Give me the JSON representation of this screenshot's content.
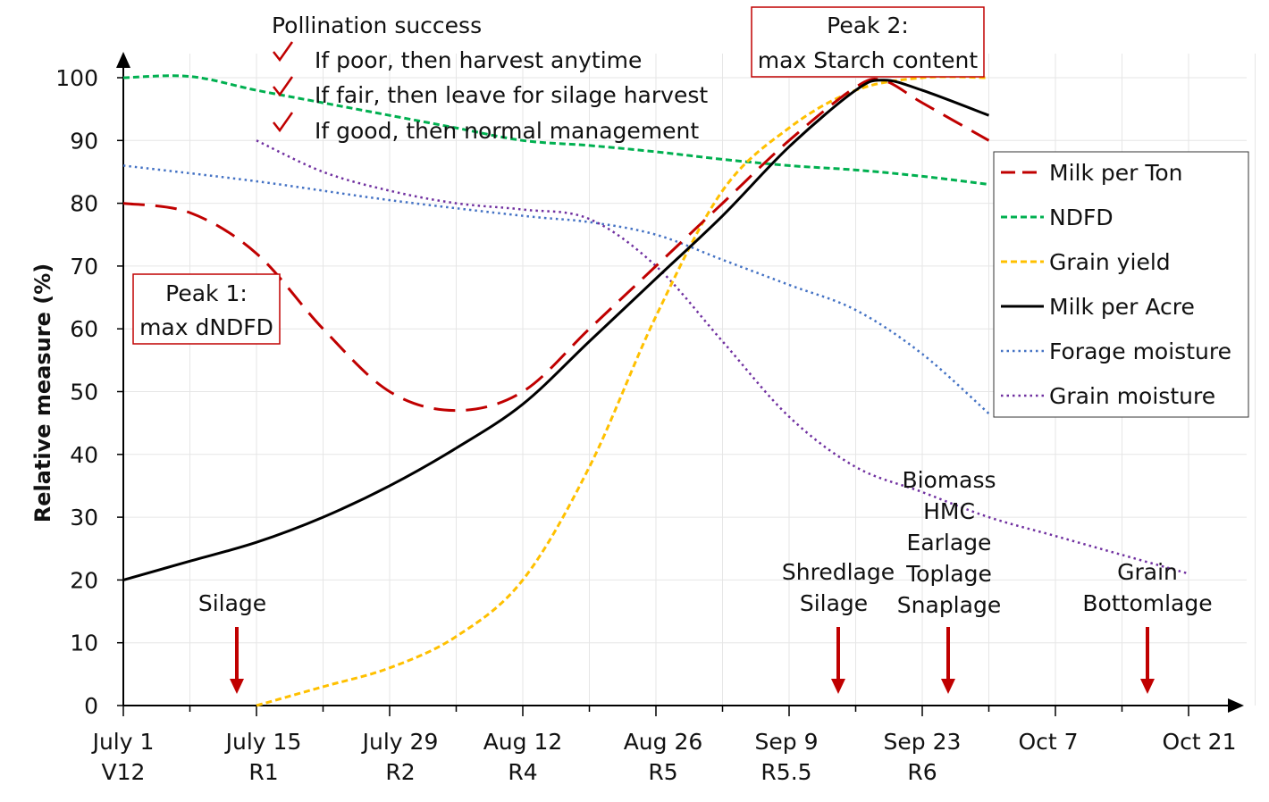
{
  "chart_data": {
    "type": "line",
    "title": "",
    "xlabel": "",
    "ylabel": "Relative measure  (%)",
    "ylim": [
      0,
      100
    ],
    "yticks": [
      0,
      10,
      20,
      30,
      40,
      50,
      60,
      70,
      80,
      90,
      100
    ],
    "xlim": [
      "Jul 1",
      "Oct 21"
    ],
    "xticks": [
      {
        "date": "Jul 1",
        "label": "July 1",
        "stage": "V12"
      },
      {
        "date": "Jul 15",
        "label": "July 15",
        "stage": "R1"
      },
      {
        "date": "Jul 29",
        "label": "July 29",
        "stage": "R2"
      },
      {
        "date": "Aug 12",
        "label": "Aug 12",
        "stage": "R4"
      },
      {
        "date": "Aug 26",
        "label": "Aug 26",
        "stage": "R5"
      },
      {
        "date": "Sep 9",
        "label": "Sep 9",
        "stage": "R5.5"
      },
      {
        "date": "Sep 23",
        "label": "Sep 23",
        "stage": "R6"
      },
      {
        "date": "Oct 7",
        "label": "Oct 7",
        "stage": ""
      },
      {
        "date": "Oct 21",
        "label": "Oct 21",
        "stage": ""
      }
    ],
    "grid": true,
    "legend_position": "right",
    "series": [
      {
        "name": "Milk per Ton",
        "color": "#C00000",
        "style": "long-dash",
        "x": [
          "Jul 1",
          "Jul 8",
          "Jul 15",
          "Jul 22",
          "Jul 29",
          "Aug 5",
          "Aug 12",
          "Aug 19",
          "Aug 26",
          "Sep 2",
          "Sep 9",
          "Sep 16",
          "Sep 19",
          "Sep 23",
          "Sep 30"
        ],
        "y": [
          80,
          78.5,
          72,
          60,
          50,
          47,
          50,
          60,
          70,
          80,
          90,
          98.5,
          99.5,
          96,
          90
        ]
      },
      {
        "name": "NDFD",
        "color": "#00B050",
        "style": "dash",
        "x": [
          "Jul 1",
          "Jul 8",
          "Jul 15",
          "Jul 22",
          "Jul 29",
          "Aug 5",
          "Aug 12",
          "Aug 19",
          "Aug 26",
          "Sep 2",
          "Sep 9",
          "Sep 16",
          "Sep 23",
          "Sep 30"
        ],
        "y": [
          100,
          100.2,
          98,
          96,
          94,
          92,
          90,
          89.2,
          88.2,
          87,
          86,
          85.3,
          84.3,
          83
        ]
      },
      {
        "name": "Grain yield",
        "color": "#FFC000",
        "style": "dash",
        "x": [
          "Jul 15",
          "Jul 22",
          "Jul 29",
          "Aug 5",
          "Aug 12",
          "Aug 19",
          "Aug 26",
          "Sep 2",
          "Sep 9",
          "Sep 16",
          "Sep 23",
          "Sep 30"
        ],
        "y": [
          0,
          3,
          6,
          11,
          20,
          38,
          62,
          82,
          92,
          98,
          100,
          100
        ]
      },
      {
        "name": "Milk per Acre",
        "color": "#000000",
        "style": "solid",
        "x": [
          "Jul 1",
          "Jul 8",
          "Jul 15",
          "Jul 22",
          "Jul 29",
          "Aug 5",
          "Aug 12",
          "Aug 19",
          "Aug 26",
          "Sep 2",
          "Sep 9",
          "Sep 16",
          "Sep 19",
          "Sep 23",
          "Sep 30"
        ],
        "y": [
          20,
          23,
          26,
          30,
          35,
          41,
          48,
          58,
          68,
          78,
          89,
          98,
          99.6,
          98,
          94
        ]
      },
      {
        "name": "Forage moisture",
        "color": "#4472C4",
        "style": "dot",
        "x": [
          "Jul 1",
          "Jul 15",
          "Jul 29",
          "Aug 12",
          "Aug 19",
          "Aug 26",
          "Sep 2",
          "Sep 9",
          "Sep 16",
          "Sep 23",
          "Sep 30"
        ],
        "y": [
          86,
          83.5,
          80.5,
          78,
          77,
          75,
          71,
          67,
          63,
          56,
          46.5
        ]
      },
      {
        "name": "Grain moisture",
        "color": "#7030A0",
        "style": "dot",
        "x": [
          "Jul 15",
          "Jul 22",
          "Jul 29",
          "Aug 5",
          "Aug 12",
          "Aug 19",
          "Aug 26",
          "Sep 2",
          "Sep 9",
          "Sep 16",
          "Sep 23",
          "Sep 30",
          "Oct 7",
          "Oct 14",
          "Oct 21"
        ],
        "y": [
          90,
          85,
          82,
          80,
          79,
          77.5,
          70,
          58,
          46,
          38,
          34,
          30,
          27,
          24,
          21
        ]
      }
    ],
    "annotations": {
      "pollination_title": "Pollination success",
      "pollination_items": [
        "If poor, then harvest anytime",
        "If fair, then leave for silage harvest",
        "If good, then normal management"
      ],
      "peak1": [
        "Peak 1:",
        "max dNDFD"
      ],
      "peak2": [
        "Peak 2:",
        "max Starch content"
      ],
      "harvest_1": [
        "Silage"
      ],
      "harvest_2": [
        "Shredlage",
        "Silage"
      ],
      "harvest_3": [
        "Biomass",
        "HMC",
        "Earlage",
        "Toplage",
        "Snaplage"
      ],
      "harvest_4": [
        "Grain",
        "Bottomlage"
      ],
      "arrow_color": "#C00000"
    }
  }
}
